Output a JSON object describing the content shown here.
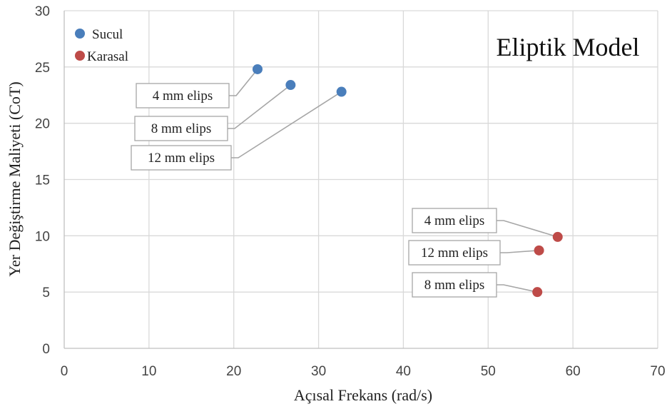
{
  "chart_data": {
    "type": "scatter",
    "title": "Eliptik Model",
    "xlabel": "Açısal Frekans (rad/s)",
    "ylabel": "Yer Değiştirme Maliyeti (CoT)",
    "xlim": [
      0,
      70
    ],
    "ylim": [
      0,
      30
    ],
    "x_ticks": [
      "0",
      "10",
      "20",
      "30",
      "40",
      "50",
      "60",
      "70"
    ],
    "y_ticks": [
      "0",
      "5",
      "10",
      "15",
      "20",
      "25",
      "30"
    ],
    "grid": true,
    "legend_position": "top-left",
    "series": [
      {
        "name": "Sucul",
        "color": "#4a7ebb",
        "points": [
          {
            "x": 22.8,
            "y": 24.8,
            "label": "4 mm elips"
          },
          {
            "x": 26.7,
            "y": 23.4,
            "label": "8 mm elips"
          },
          {
            "x": 32.7,
            "y": 22.8,
            "label": "12 mm elips"
          }
        ]
      },
      {
        "name": "Karasal",
        "color": "#be4b48",
        "points": [
          {
            "x": 58.2,
            "y": 9.9,
            "label": "4 mm elips"
          },
          {
            "x": 56.0,
            "y": 8.7,
            "label": "12 mm elips"
          },
          {
            "x": 55.8,
            "y": 5.0,
            "label": "8 mm elips"
          }
        ]
      }
    ]
  }
}
